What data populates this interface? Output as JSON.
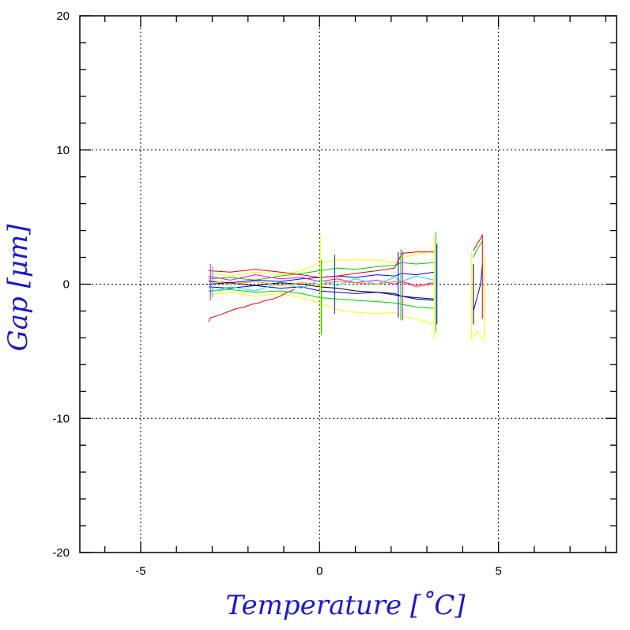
{
  "chart_data": {
    "type": "line",
    "title": "",
    "xlabel": "Temperature [˚C]",
    "ylabel": "Gap [μm]",
    "xlim": [
      -6.7,
      8.3
    ],
    "ylim": [
      -20,
      20
    ],
    "x_ticks": [
      -5,
      0,
      5
    ],
    "x_tick_labels": [
      "-5",
      "0",
      "5"
    ],
    "y_ticks": [
      -20,
      -10,
      0,
      10,
      20
    ],
    "y_tick_labels": [
      "-20",
      "-10",
      "0",
      "10",
      "20"
    ],
    "grid": true,
    "legend": "none",
    "label_color": "#1a1acc",
    "series_colors": [
      "#e60000",
      "#00cc00",
      "#0000ee",
      "#ffff00",
      "#ff00ff",
      "#00e6e6",
      "#000000",
      "#ff8800"
    ],
    "note": "many overlapping measurement traces; representative traces listed",
    "series": [
      {
        "color": "#ffff00",
        "x": [
          -3.1,
          -2.5,
          -1.8,
          -1.1,
          -0.5,
          0.0,
          0.5,
          1.0,
          1.6,
          2.1,
          2.3,
          2.7,
          3.2
        ],
        "y": [
          0.8,
          0.6,
          0.9,
          0.7,
          1.0,
          1.6,
          1.8,
          1.8,
          1.8,
          1.6,
          2.0,
          2.2,
          2.5
        ]
      },
      {
        "color": "#ffff00",
        "x": [
          -3.1,
          -2.5,
          -1.8,
          -1.1,
          -0.5,
          0.0,
          0.5,
          1.0,
          1.6,
          2.1,
          2.3,
          2.7,
          3.2
        ],
        "y": [
          -0.8,
          -0.6,
          -0.9,
          -0.7,
          -1.0,
          -1.4,
          -1.9,
          -2.1,
          -2.2,
          -2.1,
          -2.4,
          -2.6,
          -3.0
        ]
      },
      {
        "color": "#e60000",
        "x": [
          -3.1,
          -3.05,
          -2.9,
          -2.7,
          -2.5,
          -2.3,
          -2.1,
          -1.9,
          -1.7,
          -1.5,
          -1.3,
          -1.1,
          -0.9,
          -0.7
        ],
        "y": [
          -2.8,
          -2.5,
          -2.4,
          -2.2,
          -2.0,
          -1.8,
          -1.7,
          -1.5,
          -1.4,
          -1.2,
          -1.1,
          -0.9,
          -0.6,
          -0.4
        ]
      },
      {
        "color": "#00cc00",
        "x": [
          -3.1,
          -2.5,
          -1.8,
          -1.1,
          -0.5,
          0.0,
          0.5,
          1.0,
          1.6,
          2.1,
          2.3,
          2.7,
          3.2
        ],
        "y": [
          0.4,
          0.5,
          0.3,
          0.6,
          0.8,
          1.0,
          1.2,
          1.1,
          1.3,
          1.4,
          1.6,
          1.5,
          1.6
        ]
      },
      {
        "color": "#00cc00",
        "x": [
          -3.1,
          -2.5,
          -1.8,
          -1.1,
          -0.5,
          0.0,
          0.5,
          1.0,
          1.6,
          2.1,
          2.3,
          2.7,
          3.2
        ],
        "y": [
          -0.5,
          -0.4,
          -0.6,
          -0.5,
          -0.7,
          -1.0,
          -1.1,
          -1.2,
          -1.3,
          -1.4,
          -1.5,
          -1.7,
          -1.8
        ]
      },
      {
        "color": "#0000ee",
        "x": [
          -3.1,
          -2.5,
          -1.8,
          -1.1,
          -0.5,
          0.0,
          0.5,
          1.0,
          1.6,
          2.1,
          2.3,
          2.7,
          3.2
        ],
        "y": [
          0.2,
          0.1,
          0.3,
          0.2,
          0.4,
          0.5,
          0.6,
          0.5,
          0.7,
          0.6,
          0.8,
          0.7,
          0.9
        ]
      },
      {
        "color": "#0000ee",
        "x": [
          -3.1,
          -2.5,
          -1.8,
          -1.1,
          -0.5,
          0.0,
          0.5,
          1.0,
          1.6,
          2.1,
          2.3,
          2.7,
          3.2
        ],
        "y": [
          -0.2,
          -0.3,
          -0.1,
          -0.3,
          -0.2,
          -0.5,
          -0.6,
          -0.7,
          -0.6,
          -0.8,
          -0.9,
          -1.0,
          -1.1
        ]
      },
      {
        "color": "#ff00ff",
        "x": [
          -3.1,
          -2.5,
          -1.8,
          -1.1,
          -0.5,
          0.0,
          0.5,
          1.0,
          1.6,
          2.1,
          2.3,
          2.7,
          3.2
        ],
        "y": [
          0.6,
          0.3,
          0.7,
          0.4,
          0.5,
          0.2,
          0.4,
          0.1,
          0.3,
          0.0,
          0.2,
          -0.1,
          0.1
        ]
      },
      {
        "color": "#00e6e6",
        "x": [
          -3.1,
          -2.5,
          -1.8,
          -1.1,
          -0.5,
          0.0,
          0.5,
          1.0,
          1.6,
          2.1,
          2.3,
          2.7,
          3.2
        ],
        "y": [
          -0.6,
          -0.2,
          -0.5,
          0.1,
          -0.3,
          0.3,
          -0.1,
          0.4,
          0.0,
          0.5,
          0.2,
          0.6,
          0.3
        ]
      },
      {
        "color": "#000000",
        "x": [
          -3.1,
          -2.5,
          -1.8,
          -1.1,
          -0.5,
          0.0,
          0.5,
          1.0,
          1.6,
          2.1,
          2.3,
          2.7,
          3.2
        ],
        "y": [
          0.0,
          0.1,
          -0.1,
          0.1,
          0.0,
          -0.2,
          -0.3,
          -0.5,
          -0.6,
          -0.7,
          -0.9,
          -1.1,
          -1.2
        ]
      },
      {
        "color": "#ff8800",
        "x": [
          -3.1,
          -2.5,
          -1.8,
          -1.1,
          -0.5,
          0.0,
          0.5,
          1.0,
          1.6,
          2.1,
          2.3,
          2.7,
          3.2
        ],
        "y": [
          0.3,
          0.0,
          0.2,
          -0.1,
          0.1,
          0.0,
          0.2,
          0.1,
          0.0,
          0.2,
          0.1,
          -0.2,
          0.0
        ]
      },
      {
        "color": "#e60000",
        "x": [
          -3.1,
          -2.5,
          -1.8,
          -1.1,
          -0.5,
          0.0,
          0.5,
          1.0,
          1.6,
          2.1,
          2.3,
          2.7,
          3.2
        ],
        "y": [
          1.0,
          0.9,
          1.1,
          0.9,
          0.7,
          0.5,
          0.6,
          0.8,
          1.0,
          1.2,
          2.3,
          2.4,
          2.4
        ]
      },
      {
        "color": "#e60000",
        "x": [
          4.3,
          4.4,
          4.5,
          4.55
        ],
        "y": [
          2.5,
          3.0,
          3.4,
          3.7
        ]
      },
      {
        "color": "#00cc00",
        "x": [
          4.3,
          4.4,
          4.5,
          4.55
        ],
        "y": [
          2.0,
          2.6,
          3.0,
          3.2
        ]
      },
      {
        "color": "#ffff00",
        "x": [
          4.3,
          4.4,
          4.5,
          4.55
        ],
        "y": [
          -4.0,
          -3.5,
          -3.8,
          -4.2
        ]
      },
      {
        "color": "#0000ee",
        "x": [
          4.3,
          4.4,
          4.5,
          4.55
        ],
        "y": [
          -2.0,
          -1.0,
          0.0,
          1.5
        ]
      }
    ],
    "vertical_segments": [
      {
        "color": "#ffff00",
        "x": 0.02,
        "y": [
          -3.6,
          3.7
        ]
      },
      {
        "color": "#00cc00",
        "x": 0.05,
        "y": [
          -3.8,
          1.8
        ]
      },
      {
        "color": "#0000ee",
        "x": 0.42,
        "y": [
          -2.2,
          2.2
        ]
      },
      {
        "color": "#0000ee",
        "x": 2.2,
        "y": [
          -2.5,
          2.4
        ]
      },
      {
        "color": "#00cc00",
        "x": 2.27,
        "y": [
          -2.7,
          2.6
        ]
      },
      {
        "color": "#ff00ff",
        "x": 2.32,
        "y": [
          -2.7,
          2.5
        ]
      },
      {
        "color": "#ffff00",
        "x": 3.2,
        "y": [
          -4.2,
          3.6
        ]
      },
      {
        "color": "#00cc00",
        "x": 3.25,
        "y": [
          -3.6,
          3.9
        ]
      },
      {
        "color": "#0000ee",
        "x": 3.28,
        "y": [
          -3.0,
          3.0
        ]
      },
      {
        "color": "#ffff00",
        "x": 4.25,
        "y": [
          -4.2,
          2.5
        ]
      },
      {
        "color": "#000000",
        "x": 4.3,
        "y": [
          -3.0,
          1.5
        ]
      },
      {
        "color": "#e60000",
        "x": 4.55,
        "y": [
          -2.6,
          3.7
        ]
      },
      {
        "color": "#ffff00",
        "x": 4.6,
        "y": [
          -4.3,
          2.0
        ]
      },
      {
        "color": "#ff00ff",
        "x": -3.05,
        "y": [
          -1.2,
          1.5
        ]
      },
      {
        "color": "#00e6e6",
        "x": -3.0,
        "y": [
          -1.0,
          1.3
        ]
      }
    ]
  }
}
